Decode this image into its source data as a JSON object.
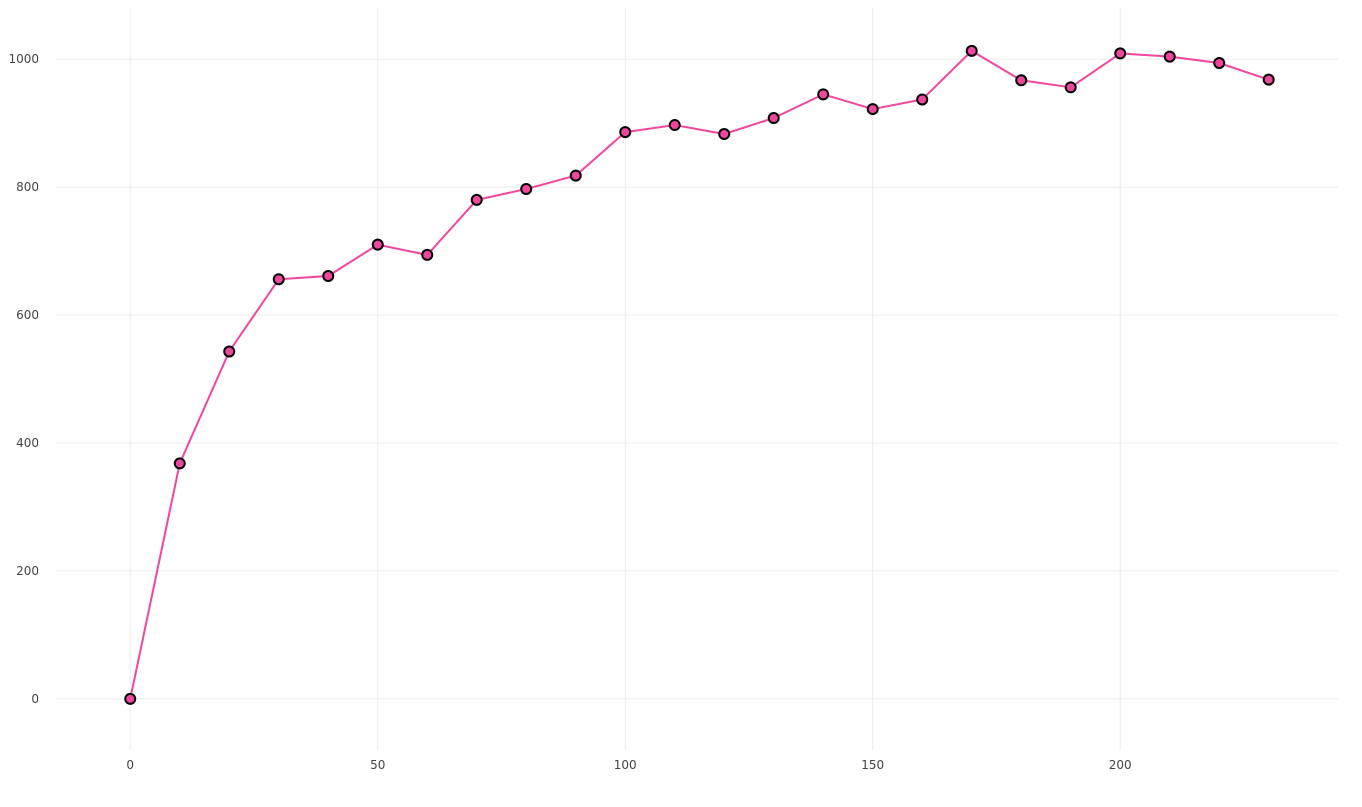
{
  "colors": {
    "series": "#f0469e",
    "marker_fill": "#f0469e",
    "marker_stroke": "#000000",
    "grid": "#ebebeb",
    "tick_text": "#444444",
    "background": "#ffffff"
  },
  "chart_data": {
    "type": "line",
    "title": "",
    "xlabel": "",
    "ylabel": "",
    "xlim": [
      -15,
      244
    ],
    "ylim": [
      -80,
      1080
    ],
    "x_ticks": [
      0,
      50,
      100,
      150,
      200
    ],
    "y_ticks": [
      0,
      200,
      400,
      600,
      800,
      1000
    ],
    "grid": true,
    "legend": "none",
    "series": [
      {
        "x": [
          0,
          10,
          20,
          30,
          40,
          50,
          60,
          70,
          80,
          90,
          100,
          110,
          120,
          130,
          140,
          150,
          160,
          170,
          180,
          190,
          200,
          210,
          220,
          230
        ],
        "y": [
          0,
          368,
          543,
          656,
          661,
          710,
          694,
          780,
          797,
          818,
          886,
          897,
          883,
          908,
          945,
          922,
          937,
          1013,
          967,
          956,
          1009,
          1004,
          994,
          968
        ]
      }
    ]
  }
}
